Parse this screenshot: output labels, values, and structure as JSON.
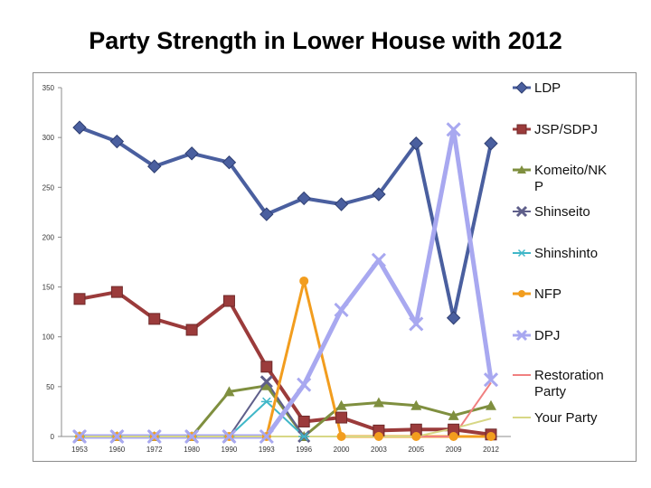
{
  "chart_data": {
    "type": "line",
    "title": "Party Strength in Lower House with 2012",
    "xlabel": "",
    "ylabel": "",
    "categories": [
      "1953",
      "1960",
      "1972",
      "1980",
      "1990",
      "1993",
      "1996",
      "2000",
      "2003",
      "2005",
      "2009",
      "2012"
    ],
    "ylim": [
      0,
      350
    ],
    "yticks": [
      0,
      50,
      100,
      150,
      200,
      250,
      300,
      350
    ],
    "grid": false,
    "legend": "right",
    "series": [
      {
        "name": "LDP",
        "color": "#4a5f9f",
        "marker": "diamond",
        "width": 4,
        "values": [
          310,
          296,
          271,
          284,
          275,
          223,
          239,
          233,
          243,
          294,
          119,
          294
        ]
      },
      {
        "name": "JSP/SDPJ",
        "color": "#9b3b3b",
        "marker": "square",
        "width": 4,
        "values": [
          138,
          145,
          118,
          107,
          136,
          70,
          15,
          19,
          6,
          7,
          7,
          2
        ]
      },
      {
        "name": "Komeito/NKP",
        "color": "#7f8f3f",
        "marker": "triangle",
        "width": 3,
        "values": [
          0,
          0,
          0,
          0,
          45,
          51,
          0,
          31,
          34,
          31,
          21,
          31
        ]
      },
      {
        "name": "Shinseito",
        "color": "#5f5f8a",
        "marker": "x",
        "width": 2,
        "values": [
          0,
          0,
          0,
          0,
          0,
          55,
          0,
          null,
          null,
          null,
          null,
          null
        ]
      },
      {
        "name": "Shinshinto",
        "color": "#40b7c8",
        "marker": "star",
        "width": 2,
        "values": [
          0,
          0,
          0,
          0,
          0,
          35,
          0,
          null,
          null,
          null,
          null,
          null
        ]
      },
      {
        "name": "NFP",
        "color": "#f29d1e",
        "marker": "circle",
        "width": 3,
        "values": [
          0,
          0,
          0,
          0,
          0,
          0,
          156,
          0,
          0,
          0,
          0,
          0
        ]
      },
      {
        "name": "DPJ",
        "color": "#a8a8f0",
        "marker": "x",
        "width": 5,
        "values": [
          0,
          0,
          0,
          0,
          0,
          0,
          52,
          127,
          177,
          113,
          308,
          57
        ]
      },
      {
        "name": "Restoration Party",
        "color": "#f08080",
        "marker": "none",
        "width": 2,
        "values": [
          0,
          0,
          0,
          0,
          0,
          0,
          0,
          0,
          0,
          0,
          0,
          54
        ]
      },
      {
        "name": "Your Party",
        "color": "#d7d785",
        "marker": "none",
        "width": 2,
        "values": [
          0,
          0,
          0,
          0,
          0,
          0,
          0,
          0,
          0,
          0,
          8,
          18
        ]
      }
    ],
    "legend_labels": [
      {
        "series": "LDP",
        "lines": [
          "LDP"
        ]
      },
      {
        "series": "JSP/SDPJ",
        "lines": [
          "JSP/SDPJ"
        ]
      },
      {
        "series": "Komeito/NKP",
        "lines": [
          "Komeito/NK",
          "P"
        ]
      },
      {
        "series": "Shinseito",
        "lines": [
          "Shinseito"
        ]
      },
      {
        "series": "Shinshinto",
        "lines": [
          "Shinshinto"
        ]
      },
      {
        "series": "NFP",
        "lines": [
          "NFP"
        ]
      },
      {
        "series": "DPJ",
        "lines": [
          "DPJ"
        ]
      },
      {
        "series": "Restoration Party",
        "lines": [
          "Restoration",
          "Party"
        ]
      },
      {
        "series": "Your Party",
        "lines": [
          "Your Party"
        ]
      }
    ]
  }
}
